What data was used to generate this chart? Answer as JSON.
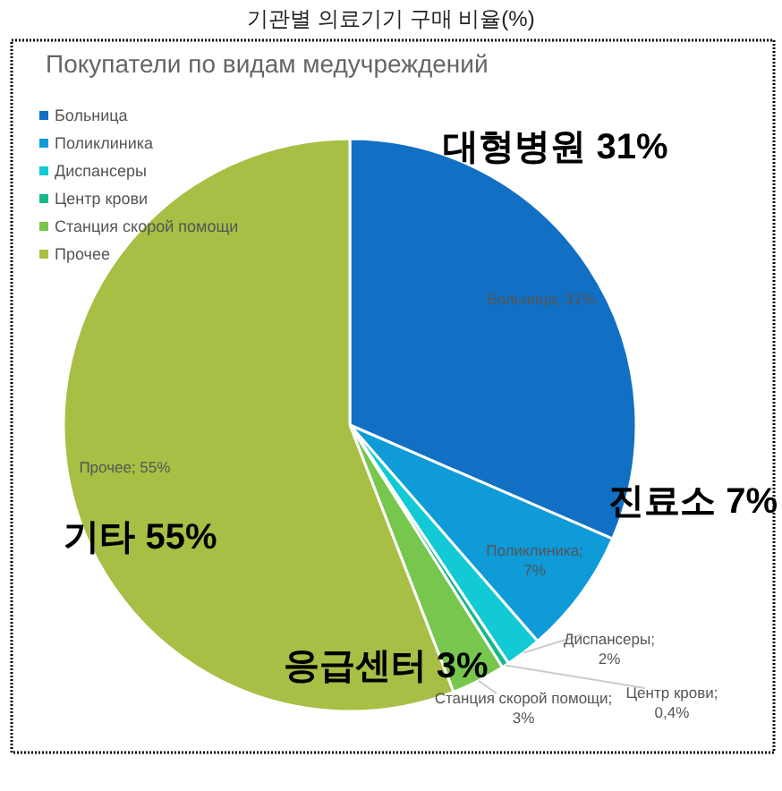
{
  "chart_data": {
    "type": "pie",
    "title": "기관별 의료기기 구매 비율(%)",
    "subtitle": "Покупатели по видам медучреждений",
    "categories": [
      "Больница",
      "Поликлиника",
      "Диспансеры",
      "Центр крови",
      "Станция скорой помощи",
      "Прочее"
    ],
    "values": [
      31,
      7,
      2,
      0.4,
      3,
      55
    ],
    "colors": [
      "#1170c4",
      "#0f9ad8",
      "#12c9d6",
      "#14b88a",
      "#77c64e",
      "#a7bf45"
    ],
    "value_labels": [
      "Больница; 31%",
      "Поликлиника; 7%",
      "Диспансеры; 2%",
      "Центр крови; 0,4%",
      "Станция скорой помощи; 3%",
      "Прочее; 55%"
    ],
    "annotations": [
      "대형병원 31%",
      "진료소 7%",
      "응급센터 3%",
      "기타 55%"
    ],
    "legend": "top left"
  }
}
